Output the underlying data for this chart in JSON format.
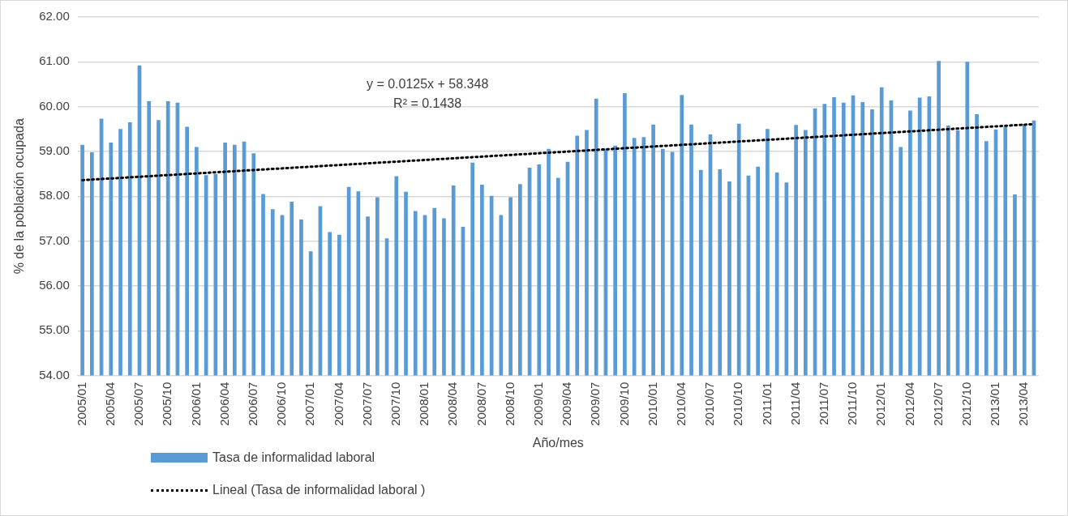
{
  "chart_data": {
    "type": "bar",
    "xlabel": "Año/mes",
    "ylabel": "% de la población ocupada",
    "categories": [
      "2005/01",
      null,
      null,
      "2005/04",
      null,
      null,
      "2005/07",
      null,
      null,
      "2005/10",
      null,
      null,
      "2006/01",
      null,
      null,
      "2006/04",
      null,
      null,
      "2006/07",
      null,
      null,
      "2006/10",
      null,
      null,
      "2007/01",
      null,
      null,
      "2007/04",
      null,
      null,
      "2007/07",
      null,
      null,
      "2007/10",
      null,
      null,
      "2008/01",
      null,
      null,
      "2008/04",
      null,
      null,
      "2008/07",
      null,
      null,
      "2008/10",
      null,
      null,
      "2009/01",
      null,
      null,
      "2009/04",
      null,
      null,
      "2009/07",
      null,
      null,
      "2009/10",
      null,
      null,
      "2010/01",
      null,
      null,
      "2010/04",
      null,
      null,
      "2010/07",
      null,
      null,
      "2010/10",
      null,
      null,
      "2011/01",
      null,
      null,
      "2011/04",
      null,
      null,
      "2011/07",
      null,
      null,
      "2011/10",
      null,
      null,
      "2012/01",
      null,
      null,
      "2012/04",
      null,
      null,
      "2012/07",
      null,
      null,
      "2012/10",
      null,
      null,
      "2013/01",
      null,
      null,
      "2013/04",
      null
    ],
    "series": [
      {
        "name": "Tasa de informalidad laboral",
        "color": "#5b9bd5",
        "values": [
          59.15,
          58.98,
          59.73,
          59.2,
          59.5,
          59.65,
          60.92,
          60.12,
          59.7,
          60.12,
          60.09,
          59.55,
          59.1,
          58.47,
          58.5,
          59.2,
          59.15,
          59.22,
          58.96,
          58.05,
          57.71,
          57.58,
          57.88,
          57.48,
          56.77,
          57.78,
          57.2,
          57.14,
          58.21,
          58.11,
          57.55,
          57.98,
          57.06,
          58.45,
          58.1,
          57.67,
          57.58,
          57.74,
          57.51,
          58.24,
          57.32,
          58.75,
          58.26,
          58.01,
          57.58,
          57.98,
          58.27,
          58.64,
          58.71,
          59.06,
          58.41,
          58.77,
          59.35,
          59.48,
          60.18,
          59.06,
          59.13,
          60.3,
          59.3,
          59.32,
          59.6,
          59.06,
          58.99,
          60.26,
          59.6,
          58.59,
          59.38,
          58.6,
          58.33,
          59.62,
          58.46,
          58.66,
          59.5,
          58.53,
          58.31,
          59.59,
          59.48,
          59.96,
          60.06,
          60.21,
          60.09,
          60.25,
          60.1,
          59.94,
          60.43,
          60.14,
          59.1,
          59.91,
          60.2,
          60.23,
          61.02,
          59.58,
          59.47,
          61.0,
          59.83,
          59.23,
          59.49,
          59.55,
          58.04,
          59.61,
          59.69
        ]
      },
      {
        "name": "Lineal (Tasa de informalidad laboral )",
        "type": "line",
        "color": "#000000",
        "line_style": "dotted",
        "marker": "none",
        "values": [
          58.36,
          null,
          null,
          null,
          null,
          null,
          null,
          null,
          null,
          null,
          null,
          null,
          null,
          null,
          null,
          null,
          null,
          null,
          null,
          null,
          null,
          null,
          null,
          null,
          null,
          null,
          null,
          null,
          null,
          null,
          null,
          null,
          null,
          null,
          null,
          null,
          null,
          null,
          null,
          null,
          null,
          null,
          null,
          null,
          null,
          null,
          null,
          null,
          null,
          null,
          null,
          null,
          null,
          null,
          null,
          null,
          null,
          null,
          null,
          null,
          null,
          null,
          null,
          null,
          null,
          null,
          null,
          null,
          null,
          null,
          null,
          null,
          null,
          null,
          null,
          null,
          null,
          null,
          null,
          null,
          null,
          null,
          null,
          null,
          null,
          null,
          null,
          null,
          null,
          null,
          null,
          null,
          null,
          null,
          null,
          null,
          null,
          null,
          null,
          null,
          59.61
        ]
      }
    ],
    "ylim": [
      54,
      62
    ],
    "yticks": [
      {
        "value": 54,
        "label": "54.00"
      },
      {
        "value": 55,
        "label": "55.00"
      },
      {
        "value": 56,
        "label": "56.00"
      },
      {
        "value": 57,
        "label": "57.00"
      },
      {
        "value": 58,
        "label": "58.00"
      },
      {
        "value": 59,
        "label": "59.00"
      },
      {
        "value": 60,
        "label": "60.00"
      },
      {
        "value": 61,
        "label": "61.00"
      },
      {
        "value": 62,
        "label": "62.00"
      }
    ],
    "grid": "y",
    "legend": "bottom",
    "annotations": [
      "y = 0.0125x + 58.348",
      "R² = 0.1438"
    ]
  }
}
